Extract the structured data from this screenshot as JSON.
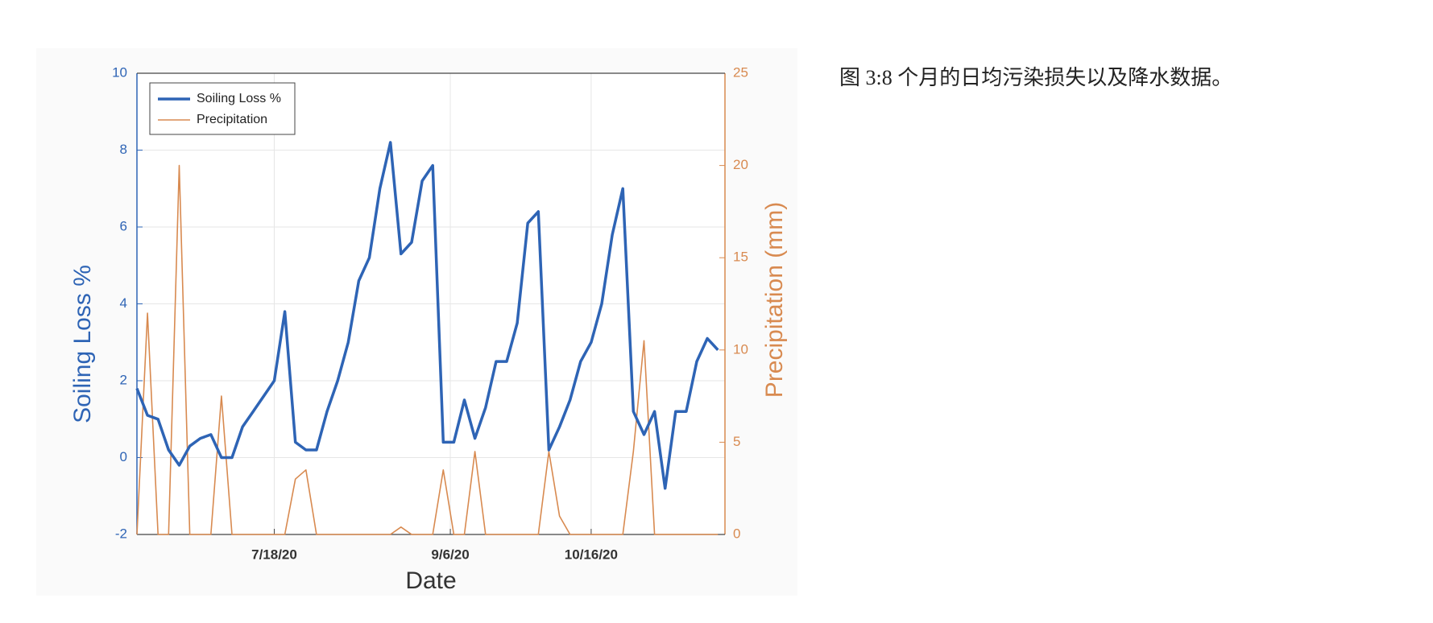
{
  "caption": "图 3:8 个月的日均污染损失以及降水数据。",
  "chart_data": {
    "type": "line",
    "x_label": "Date",
    "y_label": "Soiling Loss %",
    "y2_label": "Precipitation (mm)",
    "x": [
      "6/9/20",
      "6/12/20",
      "6/15/20",
      "6/18/20",
      "6/21/20",
      "6/24/20",
      "6/27/20",
      "6/30/20",
      "7/3/20",
      "7/6/20",
      "7/9/20",
      "7/12/20",
      "7/15/20",
      "7/18/20",
      "7/21/20",
      "7/24/20",
      "7/27/20",
      "7/30/20",
      "8/2/20",
      "8/5/20",
      "8/8/20",
      "8/11/20",
      "8/14/20",
      "8/17/20",
      "8/20/20",
      "8/23/20",
      "8/26/20",
      "8/29/20",
      "9/1/20",
      "9/4/20",
      "9/7/20",
      "9/10/20",
      "9/13/20",
      "9/16/20",
      "9/19/20",
      "9/22/20",
      "9/25/20",
      "9/28/20",
      "10/1/20",
      "10/4/20",
      "10/7/20",
      "10/10/20",
      "10/13/20",
      "10/16/20",
      "10/19/20",
      "10/22/20",
      "10/25/20",
      "10/28/20",
      "10/31/20",
      "11/3/20",
      "11/6/20",
      "11/9/20",
      "11/12/20",
      "11/15/20",
      "11/18/20",
      "11/21/20"
    ],
    "series": [
      {
        "name": "Soiling Loss %",
        "color": "#2e64b5",
        "axis": "y",
        "values": [
          1.8,
          1.1,
          1.0,
          0.2,
          -0.2,
          0.3,
          0.5,
          0.6,
          0.0,
          0.0,
          0.8,
          1.2,
          1.6,
          2.0,
          3.8,
          0.4,
          0.2,
          0.2,
          1.2,
          2.0,
          3.0,
          4.6,
          5.2,
          7.0,
          8.2,
          5.3,
          5.6,
          7.2,
          7.6,
          0.4,
          0.4,
          1.5,
          0.5,
          1.3,
          2.5,
          2.5,
          3.5,
          6.1,
          6.4,
          0.2,
          0.8,
          1.5,
          2.5,
          3.0,
          4.0,
          5.8,
          7.0,
          1.2,
          0.6,
          1.2,
          -0.8,
          1.2,
          1.2,
          2.5,
          3.1,
          2.8
        ]
      },
      {
        "name": "Precipitation",
        "color": "#d88a50",
        "axis": "y2",
        "values": [
          0,
          12,
          0,
          0,
          20,
          0,
          0,
          0,
          7.5,
          0,
          0,
          0,
          0,
          0,
          0,
          3,
          3.5,
          0,
          0,
          0,
          0,
          0,
          0,
          0,
          0,
          0.4,
          0,
          0,
          0,
          3.5,
          0,
          0,
          4.5,
          0,
          0,
          0,
          0,
          0,
          0,
          4.5,
          1,
          0,
          0,
          0,
          0,
          0,
          0,
          4.5,
          10.5,
          0,
          0,
          0,
          0,
          0,
          0,
          0
        ]
      }
    ],
    "xlim": [
      "6/9/20",
      "11/23/20"
    ],
    "xticks": [
      "7/18/20",
      "9/6/20",
      "10/16/20"
    ],
    "ylim": [
      -2,
      10
    ],
    "yticks": [
      -2,
      0,
      2,
      4,
      6,
      8,
      10
    ],
    "y2lim": [
      0,
      25
    ],
    "y2ticks": [
      0,
      5,
      10,
      15,
      20,
      25
    ],
    "grid": true,
    "legend": "upper left"
  }
}
